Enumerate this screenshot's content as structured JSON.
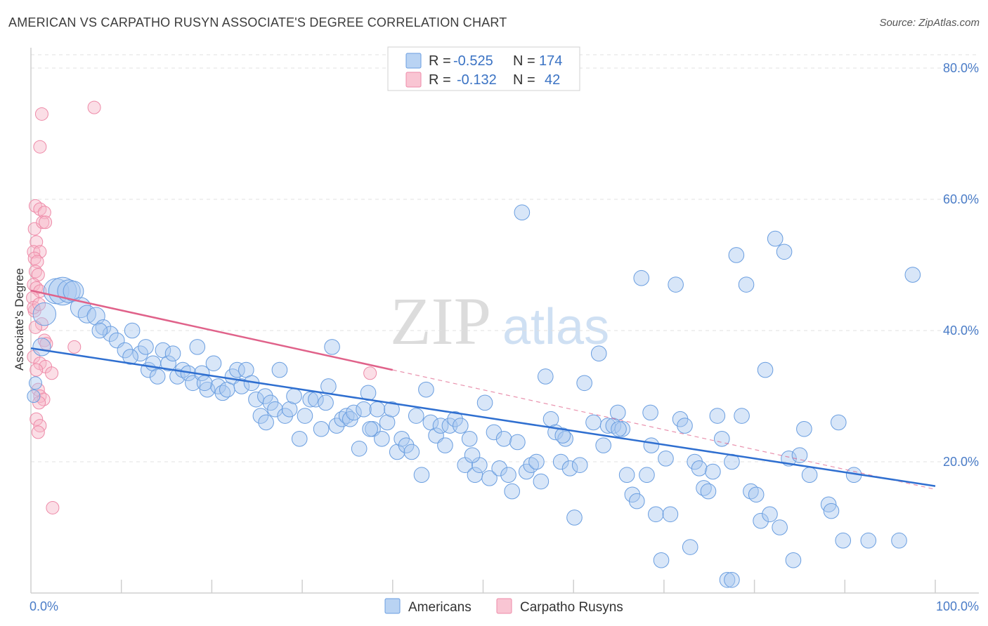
{
  "title": "AMERICAN VS CARPATHO RUSYN ASSOCIATE'S DEGREE CORRELATION CHART",
  "source": "Source: ZipAtlas.com",
  "watermark": {
    "zip": "ZIP",
    "atlas": "atlas"
  },
  "colors": {
    "americans_fill": "#a8c8f0",
    "americans_stroke": "#6a9ee0",
    "americans_line": "#2f6fd0",
    "rusyns_fill": "#f7b6c8",
    "rusyns_stroke": "#ee8aa8",
    "rusyns_line": "#e0628a",
    "grid": "#e0e0e0",
    "axis_text": "#4a7cc7"
  },
  "legend": {
    "r_label": "R =",
    "n_label": "N =",
    "rows": [
      {
        "r": "-0.525",
        "n": "174"
      },
      {
        "r": "-0.132",
        "n": "42"
      }
    ]
  },
  "bottom_legend": [
    "Americans",
    "Carpatho Rusyns"
  ],
  "chart_data": {
    "type": "scatter",
    "title": "AMERICAN VS CARPATHO RUSYN ASSOCIATE'S DEGREE CORRELATION CHART",
    "xlabel": "",
    "ylabel": "Associate's Degree",
    "xlim": [
      0,
      100
    ],
    "ylim": [
      0,
      82
    ],
    "x_tick_labels": [
      "0.0%",
      "100.0%"
    ],
    "y_ticks": [
      20,
      40,
      60,
      80
    ],
    "y_tick_labels": [
      "20.0%",
      "40.0%",
      "60.0%",
      "80.0%"
    ],
    "grid": true,
    "legend_position": "top-center",
    "series": [
      {
        "name": "Americans",
        "r": -0.525,
        "n": 174,
        "trend": {
          "x0": 0,
          "y0": 37.3,
          "x1": 100,
          "y1": 16.3
        },
        "points": [
          [
            1.5,
            42.5,
            18
          ],
          [
            1.2,
            37.5,
            14
          ],
          [
            0.5,
            32,
            10
          ],
          [
            0.3,
            30,
            10
          ],
          [
            2.8,
            46,
            20
          ],
          [
            3.5,
            46,
            22
          ],
          [
            4.2,
            46,
            18
          ],
          [
            4.7,
            46,
            16
          ],
          [
            5.5,
            43.5,
            16
          ],
          [
            6.2,
            42.5,
            14
          ],
          [
            7.2,
            42.2,
            14
          ],
          [
            8.0,
            40.5,
            12
          ],
          [
            8.8,
            39.5,
            12
          ],
          [
            9.5,
            38.5,
            12
          ],
          [
            10.4,
            37,
            12
          ],
          [
            11.2,
            40,
            12
          ],
          [
            12.1,
            36.5,
            12
          ],
          [
            12.7,
            37.5,
            12
          ],
          [
            13.0,
            34,
            12
          ],
          [
            13.5,
            35,
            12
          ],
          [
            14.0,
            33,
            12
          ],
          [
            14.6,
            37,
            12
          ],
          [
            15.2,
            35,
            12
          ],
          [
            15.7,
            36.5,
            12
          ],
          [
            16.2,
            33,
            12
          ],
          [
            16.8,
            34,
            12
          ],
          [
            17.4,
            33.5,
            12
          ],
          [
            17.9,
            32,
            12
          ],
          [
            18.4,
            37.5,
            12
          ],
          [
            18.9,
            33.5,
            12
          ],
          [
            19.5,
            31,
            12
          ],
          [
            20.2,
            35,
            12
          ],
          [
            20.7,
            31.5,
            12
          ],
          [
            21.2,
            30.5,
            12
          ],
          [
            21.7,
            31,
            12
          ],
          [
            22.3,
            33,
            12
          ],
          [
            22.8,
            34,
            12
          ],
          [
            23.3,
            31.5,
            12
          ],
          [
            23.8,
            34,
            12
          ],
          [
            24.4,
            32,
            12
          ],
          [
            24.9,
            29.5,
            12
          ],
          [
            25.4,
            27,
            12
          ],
          [
            25.9,
            30,
            12
          ],
          [
            26.5,
            29,
            12
          ],
          [
            27.0,
            28,
            12
          ],
          [
            27.5,
            34,
            12
          ],
          [
            28.1,
            27,
            12
          ],
          [
            28.6,
            28,
            12
          ],
          [
            29.1,
            30,
            12
          ],
          [
            29.7,
            23.5,
            12
          ],
          [
            30.3,
            27,
            12
          ],
          [
            30.9,
            29.5,
            12
          ],
          [
            31.5,
            29.5,
            12
          ],
          [
            32.1,
            25,
            12
          ],
          [
            32.6,
            29,
            12
          ],
          [
            32.9,
            31.5,
            12
          ],
          [
            33.3,
            37.5,
            12
          ],
          [
            33.8,
            25.5,
            12
          ],
          [
            34.4,
            26.5,
            12
          ],
          [
            34.9,
            27,
            12
          ],
          [
            35.3,
            26.5,
            12
          ],
          [
            35.7,
            27.5,
            12
          ],
          [
            36.3,
            22,
            12
          ],
          [
            36.8,
            28,
            12
          ],
          [
            37.3,
            30.5,
            12
          ],
          [
            37.8,
            25,
            12
          ],
          [
            38.3,
            28,
            12
          ],
          [
            38.8,
            23.5,
            12
          ],
          [
            39.4,
            26,
            12
          ],
          [
            39.9,
            28,
            12
          ],
          [
            40.5,
            21.5,
            12
          ],
          [
            41.0,
            23.5,
            12
          ],
          [
            41.5,
            22.5,
            12
          ],
          [
            42.1,
            21.5,
            12
          ],
          [
            42.6,
            27,
            12
          ],
          [
            43.2,
            18,
            12
          ],
          [
            43.7,
            31,
            12
          ],
          [
            44.2,
            26,
            12
          ],
          [
            44.8,
            24,
            12
          ],
          [
            45.3,
            25.5,
            12
          ],
          [
            45.8,
            22.5,
            12
          ],
          [
            46.3,
            25.5,
            12
          ],
          [
            46.9,
            26.5,
            12
          ],
          [
            47.5,
            25.5,
            12
          ],
          [
            48.0,
            19.5,
            12
          ],
          [
            48.5,
            23.5,
            12
          ],
          [
            49.1,
            18,
            12
          ],
          [
            49.6,
            19.5,
            12
          ],
          [
            50.2,
            29,
            12
          ],
          [
            50.7,
            17.5,
            12
          ],
          [
            51.2,
            24.5,
            12
          ],
          [
            51.8,
            19,
            12
          ],
          [
            52.3,
            23.5,
            12
          ],
          [
            52.8,
            18,
            12
          ],
          [
            53.2,
            15.5,
            12
          ],
          [
            53.8,
            23,
            12
          ],
          [
            54.3,
            58,
            12
          ],
          [
            54.8,
            18.5,
            12
          ],
          [
            55.3,
            19.5,
            12
          ],
          [
            55.9,
            20,
            12
          ],
          [
            56.4,
            17,
            12
          ],
          [
            56.9,
            33,
            12
          ],
          [
            57.5,
            26.5,
            12
          ],
          [
            58.0,
            24.5,
            12
          ],
          [
            58.6,
            20,
            12
          ],
          [
            59.1,
            23.5,
            12
          ],
          [
            59.6,
            19,
            12
          ],
          [
            60.1,
            11.5,
            12
          ],
          [
            60.7,
            19.5,
            12
          ],
          [
            61.2,
            32,
            12
          ],
          [
            62.2,
            26,
            12
          ],
          [
            62.8,
            36.5,
            12
          ],
          [
            63.3,
            22.5,
            12
          ],
          [
            63.8,
            25.5,
            12
          ],
          [
            64.4,
            25.5,
            12
          ],
          [
            64.9,
            27.5,
            12
          ],
          [
            65.4,
            25,
            12
          ],
          [
            65.9,
            18,
            12
          ],
          [
            66.5,
            15,
            12
          ],
          [
            67.0,
            14,
            12
          ],
          [
            67.5,
            48,
            12
          ],
          [
            68.1,
            18,
            12
          ],
          [
            68.6,
            22.5,
            12
          ],
          [
            69.1,
            12,
            12
          ],
          [
            69.7,
            5,
            12
          ],
          [
            70.2,
            20.5,
            12
          ],
          [
            70.7,
            12,
            12
          ],
          [
            71.3,
            47,
            12
          ],
          [
            71.8,
            26.5,
            12
          ],
          [
            72.3,
            25.5,
            12
          ],
          [
            72.9,
            7,
            12
          ],
          [
            73.4,
            20,
            12
          ],
          [
            73.9,
            19,
            12
          ],
          [
            74.4,
            16,
            12
          ],
          [
            74.9,
            15.5,
            12
          ],
          [
            75.4,
            18.5,
            12
          ],
          [
            75.9,
            27,
            12
          ],
          [
            76.4,
            23.5,
            12
          ],
          [
            77.0,
            2,
            12
          ],
          [
            77.5,
            20,
            12
          ],
          [
            78.0,
            51.5,
            12
          ],
          [
            78.6,
            27,
            12
          ],
          [
            79.1,
            47,
            12
          ],
          [
            79.6,
            15.5,
            12
          ],
          [
            80.2,
            15,
            12
          ],
          [
            80.7,
            11,
            12
          ],
          [
            81.2,
            34,
            12
          ],
          [
            81.7,
            12,
            12
          ],
          [
            82.3,
            54,
            12
          ],
          [
            82.8,
            10,
            12
          ],
          [
            83.3,
            52,
            12
          ],
          [
            83.8,
            20.5,
            12
          ],
          [
            84.3,
            5,
            12
          ],
          [
            85.0,
            21,
            12
          ],
          [
            85.5,
            25,
            12
          ],
          [
            86.1,
            18,
            12
          ],
          [
            88.2,
            13.5,
            12
          ],
          [
            88.5,
            12.5,
            12
          ],
          [
            89.3,
            26,
            12
          ],
          [
            89.8,
            8,
            12
          ],
          [
            91.0,
            18,
            12
          ],
          [
            92.6,
            8,
            12
          ],
          [
            97.5,
            48.5,
            12
          ],
          [
            96.0,
            8,
            12
          ],
          [
            77.5,
            2,
            12
          ],
          [
            68.5,
            27.5,
            12
          ],
          [
            65.0,
            25,
            12
          ],
          [
            58.8,
            24,
            12
          ],
          [
            48.8,
            21,
            12
          ],
          [
            37.5,
            25,
            12
          ],
          [
            26.0,
            26,
            12
          ],
          [
            19.2,
            32,
            12
          ],
          [
            11.0,
            36,
            12
          ],
          [
            7.6,
            40,
            12
          ]
        ]
      },
      {
        "name": "Carpatho Rusyns",
        "r": -0.132,
        "n": 42,
        "trend": {
          "x0": 0,
          "y0": 46.1,
          "x1": 40,
          "y1": 34.0
        },
        "dash": {
          "x0": 40,
          "y0": 34.0,
          "x1": 100,
          "y1": 15.8
        },
        "points": [
          [
            1.2,
            73,
            10
          ],
          [
            7.0,
            74,
            10
          ],
          [
            1.0,
            68,
            10
          ],
          [
            0.5,
            59,
            10
          ],
          [
            1.0,
            58.5,
            10
          ],
          [
            1.5,
            58,
            10
          ],
          [
            0.4,
            55.5,
            10
          ],
          [
            1.3,
            56.5,
            10
          ],
          [
            1.6,
            56.5,
            10
          ],
          [
            0.6,
            53.5,
            10
          ],
          [
            0.3,
            52,
            10
          ],
          [
            1.0,
            52,
            10
          ],
          [
            0.4,
            51,
            10
          ],
          [
            0.7,
            50.5,
            10
          ],
          [
            0.5,
            49,
            10
          ],
          [
            0.8,
            48.5,
            10
          ],
          [
            0.3,
            47,
            10
          ],
          [
            0.6,
            46.5,
            10
          ],
          [
            1.0,
            46,
            10
          ],
          [
            0.2,
            45,
            10
          ],
          [
            0.4,
            43,
            10
          ],
          [
            1.2,
            41,
            10
          ],
          [
            0.5,
            40.5,
            10
          ],
          [
            1.5,
            38.5,
            10
          ],
          [
            1.7,
            38,
            10
          ],
          [
            0.3,
            36,
            10
          ],
          [
            4.8,
            37.5,
            10
          ],
          [
            1.0,
            35,
            10
          ],
          [
            1.6,
            34.5,
            10
          ],
          [
            0.6,
            34,
            10
          ],
          [
            2.3,
            33.5,
            10
          ],
          [
            0.8,
            31,
            10
          ],
          [
            1.0,
            30,
            10
          ],
          [
            1.4,
            29.5,
            10
          ],
          [
            0.9,
            29,
            10
          ],
          [
            0.6,
            26.5,
            10
          ],
          [
            1.0,
            25.5,
            10
          ],
          [
            0.8,
            24.5,
            10
          ],
          [
            2.4,
            13,
            10
          ],
          [
            37.5,
            33.5,
            10
          ],
          [
            0.3,
            43.5,
            10
          ],
          [
            0.9,
            44,
            10
          ]
        ]
      }
    ]
  }
}
